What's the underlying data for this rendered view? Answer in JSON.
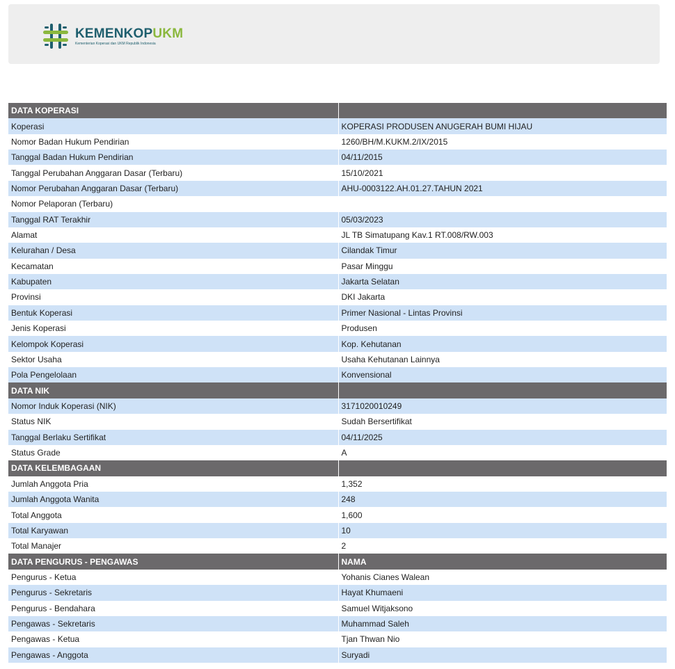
{
  "logo": {
    "main": "KEMENKOP",
    "accent": "UKM",
    "sub": "Kementerian Koperasi dan UKM Republik Indonesia"
  },
  "colors": {
    "section_header": "#6b696b",
    "row_alt": "#cfe2f7",
    "logo_teal": "#1f5f6e",
    "logo_green": "#8bb83e"
  },
  "rows": [
    {
      "type": "section",
      "label": "DATA KOPERASI",
      "value": ""
    },
    {
      "label": "Koperasi",
      "value": "KOPERASI PRODUSEN ANUGERAH BUMI HIJAU"
    },
    {
      "label": "Nomor Badan Hukum Pendirian",
      "value": "1260/BH/M.KUKM.2/IX/2015"
    },
    {
      "label": "Tanggal Badan Hukum Pendirian",
      "value": "04/11/2015"
    },
    {
      "label": "Tanggal Perubahan Anggaran Dasar (Terbaru)",
      "value": "15/10/2021"
    },
    {
      "label": "Nomor Perubahan Anggaran Dasar (Terbaru)",
      "value": "AHU-0003122.AH.01.27.TAHUN 2021"
    },
    {
      "label": "Nomor Pelaporan (Terbaru)",
      "value": ""
    },
    {
      "label": "Tanggal RAT Terakhir",
      "value": "05/03/2023"
    },
    {
      "label": "Alamat",
      "value": "JL TB Simatupang Kav.1 RT.008/RW.003"
    },
    {
      "label": "Kelurahan / Desa",
      "value": "Cilandak Timur"
    },
    {
      "label": "Kecamatan",
      "value": "Pasar Minggu"
    },
    {
      "label": "Kabupaten",
      "value": "Jakarta Selatan"
    },
    {
      "label": "Provinsi",
      "value": "DKI Jakarta"
    },
    {
      "label": "Bentuk Koperasi",
      "value": "Primer Nasional - Lintas Provinsi"
    },
    {
      "label": "Jenis Koperasi",
      "value": "Produsen"
    },
    {
      "label": "Kelompok Koperasi",
      "value": "Kop. Kehutanan"
    },
    {
      "label": "Sektor Usaha",
      "value": "Usaha Kehutanan Lainnya"
    },
    {
      "label": "Pola Pengelolaan",
      "value": "Konvensional"
    },
    {
      "type": "section",
      "label": "DATA NIK",
      "value": ""
    },
    {
      "label": "Nomor Induk Koperasi (NIK)",
      "value": "3171020010249"
    },
    {
      "label": "Status NIK",
      "value": "Sudah Bersertifikat"
    },
    {
      "label": "Tanggal Berlaku Sertifikat",
      "value": "04/11/2025"
    },
    {
      "label": "Status Grade",
      "value": "A"
    },
    {
      "type": "section",
      "label": "DATA KELEMBAGAAN",
      "value": ""
    },
    {
      "label": "Jumlah Anggota Pria",
      "value": "1,352"
    },
    {
      "label": "Jumlah Anggota Wanita",
      "value": "248"
    },
    {
      "label": "Total Anggota",
      "value": "1,600"
    },
    {
      "label": "Total Karyawan",
      "value": "10"
    },
    {
      "label": "Total Manajer",
      "value": "2"
    },
    {
      "type": "section",
      "label": "DATA PENGURUS - PENGAWAS",
      "value": "NAMA"
    },
    {
      "label": "Pengurus - Ketua",
      "value": "Yohanis Cianes Walean"
    },
    {
      "label": "Pengurus - Sekretaris",
      "value": "Hayat Khumaeni"
    },
    {
      "label": "Pengurus - Bendahara",
      "value": "Samuel Witjaksono"
    },
    {
      "label": "Pengawas - Sekretaris",
      "value": "Muhammad Saleh"
    },
    {
      "label": "Pengawas - Ketua",
      "value": "Tjan Thwan Nio"
    },
    {
      "label": "Pengawas - Anggota",
      "value": "Suryadi"
    }
  ]
}
